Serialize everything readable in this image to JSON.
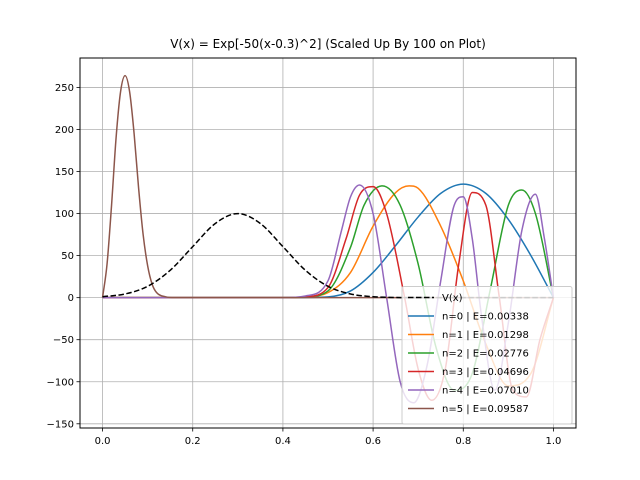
{
  "chart_data": {
    "type": "line",
    "title": "V(x) = Exp[-50(x-0.3)^2] (Scaled Up By 100 on Plot)",
    "xlabel": "",
    "ylabel": "",
    "xlim": [
      -0.05,
      1.05
    ],
    "ylim": [
      -155,
      285
    ],
    "x_ticks": [
      0.0,
      0.2,
      0.4,
      0.6,
      0.8,
      1.0
    ],
    "x_tick_labels": [
      "0.0",
      "0.2",
      "0.4",
      "0.6",
      "0.8",
      "1.0"
    ],
    "y_ticks": [
      -150,
      -100,
      -50,
      0,
      50,
      100,
      150,
      200,
      250
    ],
    "y_tick_labels": [
      "−150",
      "−100",
      "−50",
      "0",
      "50",
      "100",
      "150",
      "200",
      "250"
    ],
    "grid": true,
    "legend_position": "lower-right",
    "series": [
      {
        "name": "V(x)",
        "color": "#000000",
        "dashed": true,
        "x": [
          0.0,
          0.05,
          0.1,
          0.15,
          0.2,
          0.25,
          0.3,
          0.35,
          0.4,
          0.45,
          0.5,
          0.55,
          0.6,
          0.65,
          0.7,
          0.75,
          0.8,
          0.85,
          0.9,
          0.95,
          1.0
        ],
        "y": [
          1.1,
          4.4,
          13.5,
          32.5,
          60.7,
          88.2,
          100.0,
          88.2,
          60.7,
          32.5,
          13.5,
          4.4,
          1.1,
          0.2,
          0.0,
          0.0,
          0.0,
          0.0,
          0.0,
          0.0,
          0.0
        ]
      },
      {
        "name": "n=0 | E=0.00338",
        "color": "#1f77b4",
        "x": [
          0.0,
          0.1,
          0.2,
          0.3,
          0.4,
          0.5,
          0.55,
          0.6,
          0.65,
          0.7,
          0.75,
          0.8,
          0.85,
          0.9,
          0.95,
          1.0
        ],
        "y": [
          0,
          0,
          0,
          0,
          0,
          1,
          8,
          30,
          62,
          96,
          124,
          135,
          124,
          93,
          50,
          0
        ]
      },
      {
        "name": "n=1 | E=0.01298",
        "color": "#ff7f0e",
        "x": [
          0.0,
          0.1,
          0.2,
          0.3,
          0.4,
          0.45,
          0.5,
          0.55,
          0.6,
          0.65,
          0.68,
          0.7,
          0.75,
          0.8,
          0.85,
          0.9,
          0.95,
          1.0
        ],
        "y": [
          0,
          0,
          0,
          0,
          0,
          1,
          6,
          30,
          85,
          125,
          133,
          130,
          85,
          20,
          -55,
          -105,
          -90,
          0
        ]
      },
      {
        "name": "n=2 | E=0.02776",
        "color": "#2ca02c",
        "x": [
          0.0,
          0.1,
          0.2,
          0.3,
          0.4,
          0.45,
          0.5,
          0.55,
          0.58,
          0.62,
          0.66,
          0.7,
          0.74,
          0.78,
          0.82,
          0.86,
          0.9,
          0.93,
          0.96,
          1.0
        ],
        "y": [
          0,
          0,
          0,
          0,
          0,
          1,
          8,
          60,
          110,
          133,
          110,
          40,
          -60,
          -110,
          -90,
          10,
          110,
          128,
          100,
          0
        ]
      },
      {
        "name": "n=3 | E=0.04696",
        "color": "#d62728",
        "x": [
          0.0,
          0.1,
          0.2,
          0.3,
          0.4,
          0.45,
          0.5,
          0.54,
          0.57,
          0.6,
          0.63,
          0.67,
          0.7,
          0.73,
          0.76,
          0.79,
          0.82,
          0.85,
          0.88,
          0.91,
          0.94,
          0.97,
          1.0
        ],
        "y": [
          0,
          0,
          0,
          0,
          0,
          1,
          12,
          70,
          122,
          132,
          100,
          0,
          -85,
          -122,
          -85,
          40,
          125,
          110,
          0,
          -110,
          -118,
          -50,
          0
        ]
      },
      {
        "name": "n=4 | E=0.07010",
        "color": "#9467bd",
        "x": [
          0.0,
          0.1,
          0.2,
          0.3,
          0.4,
          0.45,
          0.5,
          0.53,
          0.55,
          0.57,
          0.6,
          0.63,
          0.66,
          0.69,
          0.72,
          0.75,
          0.78,
          0.8,
          0.82,
          0.84,
          0.87,
          0.9,
          0.93,
          0.96,
          0.98,
          1.0
        ],
        "y": [
          0,
          0,
          0,
          0,
          0,
          2,
          20,
          80,
          120,
          134,
          100,
          0,
          -100,
          -125,
          -80,
          20,
          110,
          120,
          70,
          -20,
          -110,
          -30,
          80,
          123,
          70,
          0
        ]
      },
      {
        "name": "n=5 | E=0.09587",
        "color": "#8c564b",
        "x": [
          0.0,
          0.01,
          0.02,
          0.03,
          0.04,
          0.05,
          0.06,
          0.07,
          0.08,
          0.09,
          0.1,
          0.11,
          0.12,
          0.14,
          0.16,
          0.2,
          0.3,
          0.4,
          0.5,
          0.6,
          0.7,
          0.8,
          0.9,
          1.0
        ],
        "y": [
          0,
          40,
          110,
          190,
          245,
          264,
          245,
          195,
          130,
          75,
          38,
          16,
          6,
          1,
          0,
          0,
          0,
          0,
          0,
          0,
          0,
          0,
          0,
          0
        ]
      }
    ]
  }
}
